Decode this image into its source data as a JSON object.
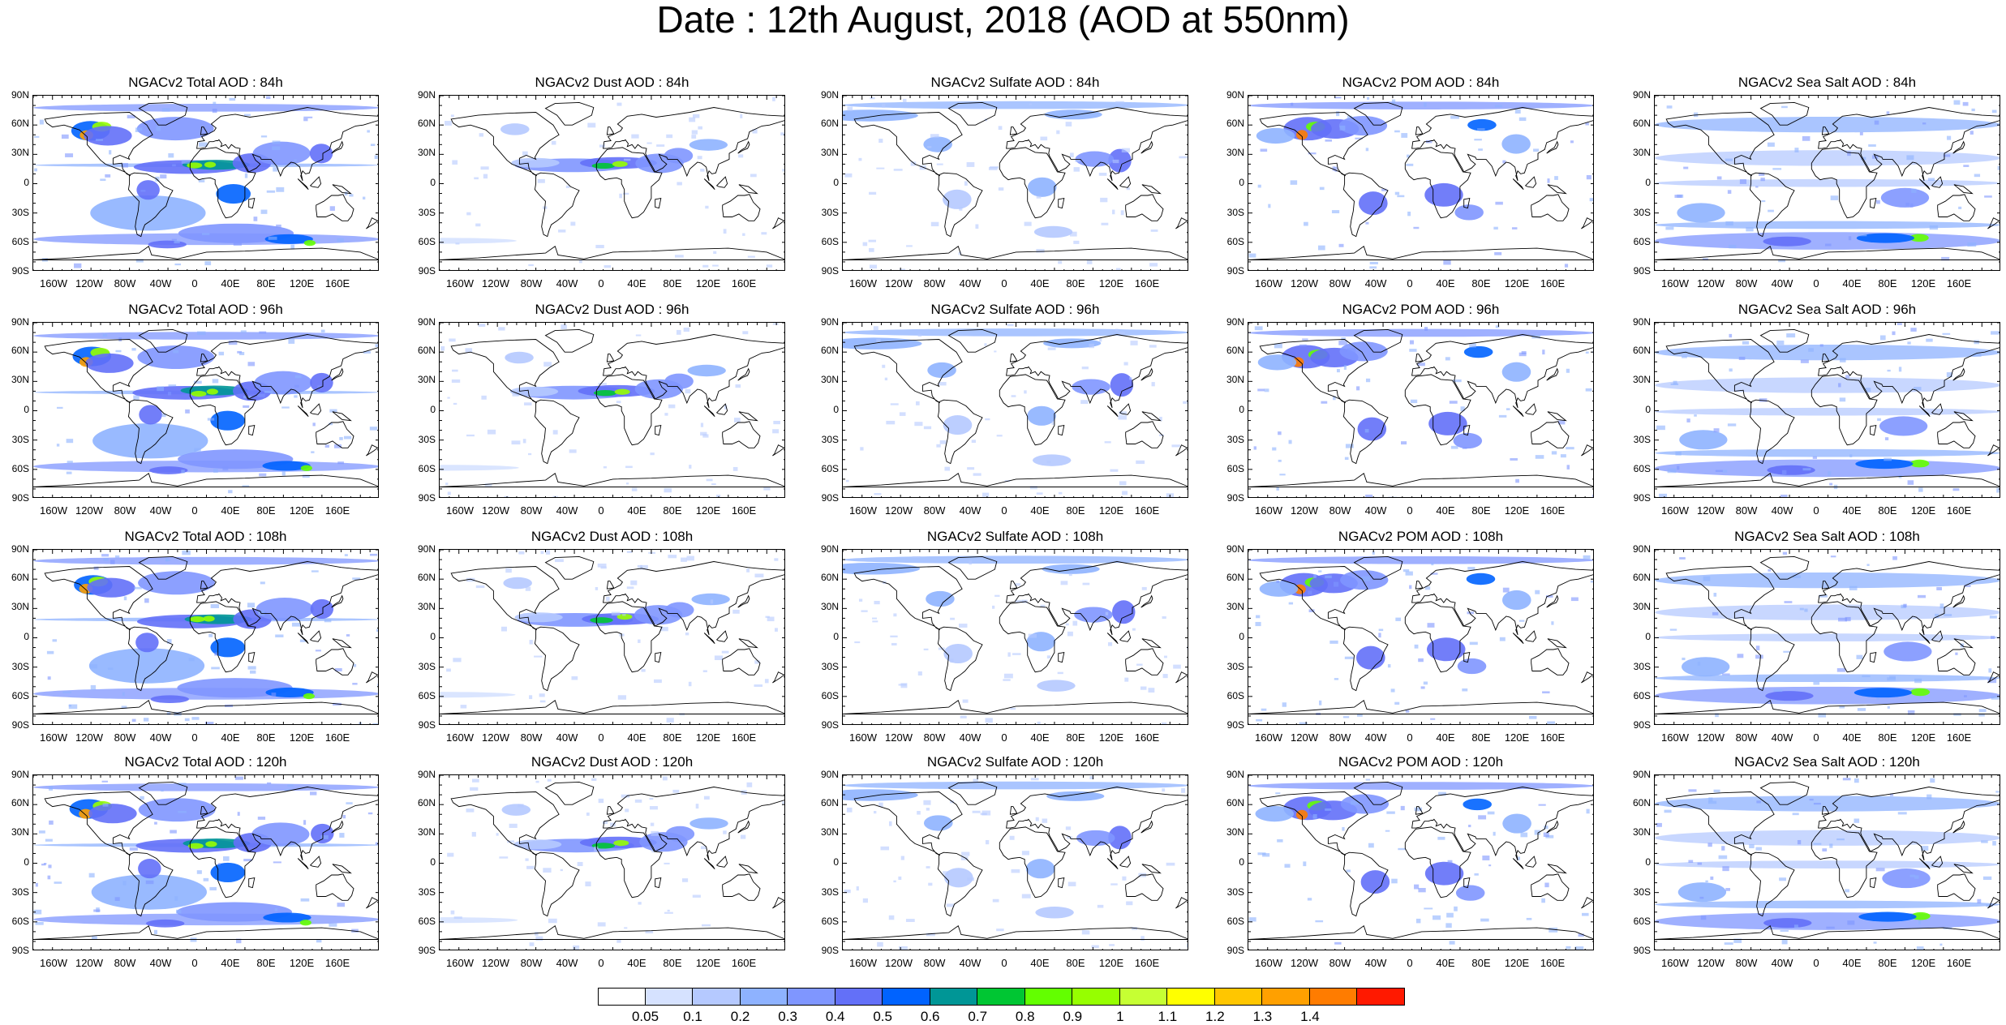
{
  "title": "Date : 12th August, 2018 (AOD at 550nm)",
  "lat_labels": [
    "90N",
    "60N",
    "30N",
    "0",
    "30S",
    "60S",
    "90S"
  ],
  "lon_labels": [
    "160W",
    "120W",
    "80W",
    "40W",
    "0",
    "40E",
    "80E",
    "120E",
    "160E"
  ],
  "panels": [
    [
      "NGACv2 Total AOD : 84h",
      "NGACv2 Dust AOD : 84h",
      "NGACv2 Sulfate AOD : 84h",
      "NGACv2 POM AOD : 84h",
      "NGACv2 Sea Salt AOD : 84h"
    ],
    [
      "NGACv2 Total AOD : 96h",
      "NGACv2 Dust AOD : 96h",
      "NGACv2 Sulfate AOD : 96h",
      "NGACv2 POM AOD : 96h",
      "NGACv2 Sea Salt AOD : 96h"
    ],
    [
      "NGACv2 Total AOD : 108h",
      "NGACv2 Dust AOD : 108h",
      "NGACv2 Sulfate AOD : 108h",
      "NGACv2 POM AOD : 108h",
      "NGACv2 Sea Salt AOD : 108h"
    ],
    [
      "NGACv2 Total AOD : 120h",
      "NGACv2 Dust AOD : 120h",
      "NGACv2 Sulfate AOD : 120h",
      "NGACv2 POM AOD : 120h",
      "NGACv2 Sea Salt  AOD : 120h"
    ]
  ],
  "colorbar": {
    "labels": [
      "0.05",
      "0.1",
      "0.2",
      "0.3",
      "0.4",
      "0.5",
      "0.6",
      "0.7",
      "0.8",
      "0.9",
      "1",
      "1.1",
      "1.2",
      "1.3",
      "1.4"
    ],
    "colors": [
      "#ffffff",
      "#d6e2ff",
      "#b5c9ff",
      "#8eb2ff",
      "#7f96ff",
      "#6370f8",
      "#0063ff",
      "#009696",
      "#00c633",
      "#63ff00",
      "#96ff00",
      "#c6ff33",
      "#ffff00",
      "#ffc600",
      "#ffa000",
      "#ff7c00",
      "#ff1900"
    ]
  }
}
